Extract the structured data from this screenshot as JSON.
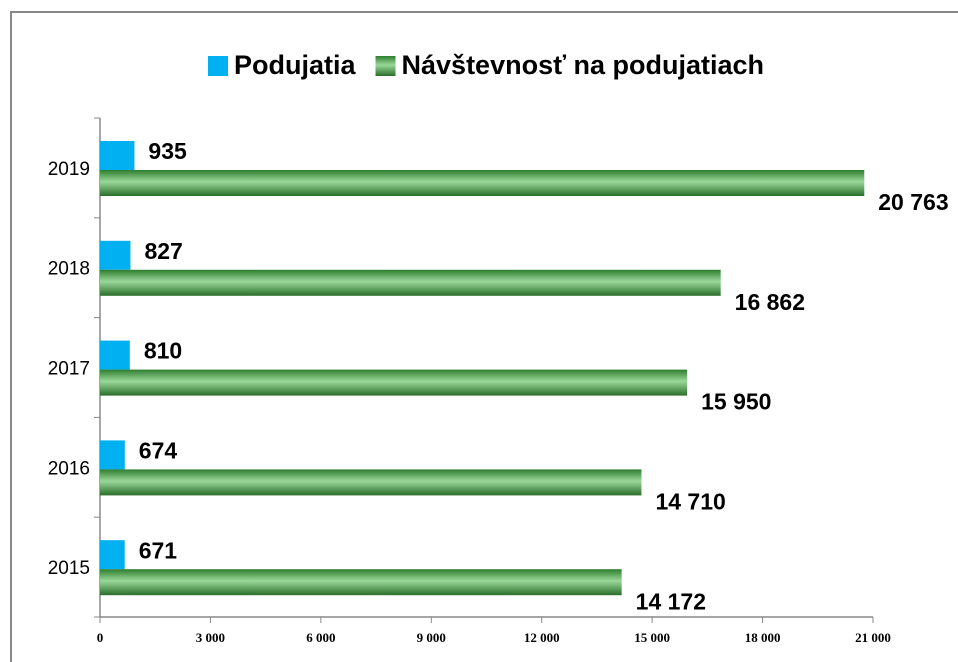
{
  "chart_data": {
    "type": "bar",
    "orientation": "horizontal",
    "categories": [
      "2015",
      "2016",
      "2017",
      "2018",
      "2019"
    ],
    "series": [
      {
        "name": "Podujatia",
        "color": "#00b0f0",
        "values": [
          671,
          674,
          810,
          827,
          935
        ],
        "value_labels": [
          "671",
          "674",
          "810",
          "827",
          "935"
        ]
      },
      {
        "name": "Návštevnosť na podujatiach",
        "color": "#339933",
        "values": [
          14172,
          14710,
          15950,
          16862,
          20763
        ],
        "value_labels": [
          "14 172",
          "14 710",
          "15 950",
          "16 862",
          "20 763"
        ]
      }
    ],
    "xlim": [
      0,
      21000
    ],
    "xticks": [
      0,
      {
        "value": 3000,
        "label": "3 000"
      },
      {
        "value": 6000,
        "label": "6 000"
      },
      {
        "value": 9000,
        "label": "9 000"
      },
      {
        "value": 12000,
        "label": "12 000"
      },
      {
        "value": 15000,
        "label": "15 000"
      },
      {
        "value": 18000,
        "label": "18 000"
      },
      {
        "value": 21000,
        "label": "21 000"
      }
    ],
    "legend": "top"
  }
}
